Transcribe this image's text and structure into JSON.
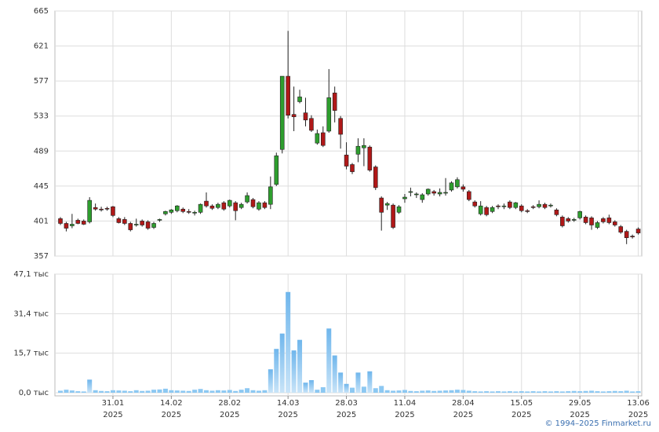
{
  "chart_data": {
    "type": "candlestick",
    "categories": [
      null,
      null,
      null,
      null,
      null,
      null,
      null,
      null,
      null,
      "31.01\n2025",
      null,
      null,
      null,
      null,
      null,
      null,
      null,
      null,
      null,
      "14.02\n2025",
      null,
      null,
      null,
      null,
      null,
      null,
      null,
      null,
      null,
      "28.02\n2025",
      null,
      null,
      null,
      null,
      null,
      null,
      null,
      null,
      null,
      "14.03\n2025",
      null,
      null,
      null,
      null,
      null,
      null,
      null,
      null,
      null,
      "28.03\n2025",
      null,
      null,
      null,
      null,
      null,
      null,
      null,
      null,
      null,
      "11.04\n2025",
      null,
      null,
      null,
      null,
      null,
      null,
      null,
      null,
      null,
      "28.04\n2025",
      null,
      null,
      null,
      null,
      null,
      null,
      null,
      null,
      null,
      "15.05\n2025",
      null,
      null,
      null,
      null,
      null,
      null,
      null,
      null,
      null,
      "29.05\n2025",
      null,
      null,
      null,
      null,
      null,
      null,
      null,
      null,
      null,
      "13.06\n2025"
    ],
    "open": [
      404,
      398,
      395,
      402,
      401,
      400,
      418,
      416,
      417,
      419,
      404,
      403,
      398,
      396,
      401,
      400,
      393,
      402,
      410,
      412,
      414,
      416,
      413,
      411,
      412,
      426,
      420,
      418,
      424,
      420,
      424,
      418,
      425,
      428,
      416,
      424,
      422,
      447,
      491,
      583,
      535,
      551,
      537,
      530,
      499,
      512,
      514,
      562,
      530,
      484,
      472,
      485,
      493,
      494,
      469,
      430,
      421,
      421,
      412,
      429,
      437,
      434,
      428,
      435,
      438,
      435,
      437,
      440,
      444,
      444,
      438,
      425,
      410,
      418,
      413,
      420,
      419,
      425,
      418,
      420,
      414,
      419,
      419,
      422,
      420,
      415,
      406,
      404,
      402,
      405,
      406,
      405,
      393,
      404,
      405,
      400,
      394,
      388,
      382,
      391
    ],
    "high": [
      406,
      400,
      410,
      404,
      403,
      431,
      423,
      419,
      419,
      420,
      406,
      406,
      400,
      404,
      403,
      402,
      400,
      404,
      414,
      416,
      421,
      418,
      416,
      414,
      423,
      437,
      422,
      424,
      426,
      428,
      426,
      424,
      437,
      430,
      426,
      426,
      457,
      487,
      583,
      640,
      570,
      566,
      556,
      534,
      516,
      520,
      592,
      570,
      533,
      500,
      474,
      505,
      505,
      496,
      471,
      432,
      425,
      423,
      421,
      435,
      443,
      437,
      436,
      442,
      440,
      442,
      455,
      451,
      456,
      447,
      440,
      427,
      426,
      420,
      420,
      422,
      423,
      427,
      425,
      422,
      416,
      421,
      427,
      424,
      423,
      417,
      408,
      406,
      405,
      414,
      408,
      407,
      401,
      406,
      409,
      402,
      396,
      390,
      384,
      393
    ],
    "low": [
      396,
      388,
      392,
      397,
      396,
      398,
      414,
      413,
      414,
      406,
      398,
      396,
      388,
      394,
      394,
      390,
      391,
      400,
      408,
      410,
      412,
      411,
      410,
      408,
      410,
      418,
      415,
      416,
      414,
      418,
      402,
      416,
      423,
      417,
      414,
      416,
      416,
      445,
      486,
      530,
      514,
      549,
      520,
      513,
      497,
      494,
      512,
      525,
      492,
      466,
      460,
      475,
      470,
      463,
      440,
      389,
      415,
      391,
      410,
      424,
      432,
      430,
      424,
      433,
      433,
      432,
      433,
      438,
      442,
      438,
      426,
      418,
      408,
      407,
      411,
      416,
      416,
      416,
      416,
      412,
      411,
      416,
      417,
      416,
      418,
      407,
      393,
      399,
      400,
      403,
      397,
      390,
      391,
      398,
      397,
      394,
      385,
      372,
      379,
      384
    ],
    "close": [
      398,
      392,
      397,
      398,
      397,
      427,
      416,
      415,
      416,
      408,
      399,
      398,
      390,
      397,
      396,
      392,
      398,
      403,
      413,
      415,
      420,
      413,
      412,
      412,
      422,
      420,
      417,
      422,
      416,
      427,
      414,
      422,
      433,
      419,
      424,
      418,
      444,
      483,
      583,
      534,
      532,
      557,
      528,
      515,
      511,
      496,
      556,
      540,
      510,
      470,
      463,
      495,
      496,
      465,
      443,
      412,
      423,
      393,
      419,
      431,
      438,
      435,
      434,
      441,
      436,
      437,
      437,
      449,
      453,
      441,
      428,
      420,
      420,
      409,
      418,
      419,
      420,
      418,
      424,
      414,
      413,
      418,
      422,
      418,
      421,
      409,
      395,
      401,
      403,
      413,
      399,
      396,
      399,
      400,
      399,
      396,
      387,
      380,
      381,
      386
    ],
    "up_color": "#2e9e2e",
    "down_color": "#b01818",
    "ylim": [
      357,
      665
    ],
    "yticks": [
      357,
      401,
      445,
      489,
      533,
      577,
      621,
      665
    ],
    "grid": true,
    "volume": {
      "type": "bar",
      "color": "#8cc8f2",
      "values": [
        0.8,
        1.2,
        0.9,
        0.6,
        0.5,
        5.2,
        1.0,
        0.7,
        0.6,
        1.0,
        0.9,
        0.8,
        0.6,
        1.0,
        0.7,
        0.8,
        1.2,
        1.3,
        1.6,
        1.0,
        0.9,
        0.8,
        0.7,
        1.2,
        1.5,
        1.0,
        0.8,
        1.0,
        0.9,
        1.1,
        0.7,
        1.2,
        1.8,
        1.0,
        0.8,
        1.0,
        9.3,
        17.4,
        23.5,
        40.0,
        16.8,
        21.0,
        4.0,
        5.0,
        1.2,
        2.2,
        25.5,
        14.8,
        8.0,
        3.5,
        2.0,
        8.0,
        2.4,
        8.5,
        1.8,
        2.7,
        1.0,
        0.8,
        0.9,
        1.1,
        0.7,
        0.6,
        0.8,
        0.9,
        0.7,
        0.8,
        0.9,
        1.0,
        1.2,
        1.1,
        0.8,
        0.6,
        0.5,
        0.6,
        0.5,
        0.6,
        0.5,
        0.6,
        0.5,
        0.6,
        0.5,
        0.6,
        0.5,
        0.6,
        0.5,
        0.6,
        0.5,
        0.6,
        0.7,
        0.6,
        0.7,
        0.8,
        0.6,
        0.5,
        0.6,
        0.7,
        0.6,
        0.8,
        0.5,
        0.6
      ],
      "ylim": [
        0,
        47.1
      ],
      "yticks": [
        {
          "value": 0,
          "label": "0,0 тыс"
        },
        {
          "value": 15.7,
          "label": "15,7 тыс"
        },
        {
          "value": 31.4,
          "label": "31,4 тыс"
        },
        {
          "value": 47.1,
          "label": "47,1 тыс"
        }
      ]
    }
  },
  "credit": "© 1994–2025 Finmarket.ru"
}
